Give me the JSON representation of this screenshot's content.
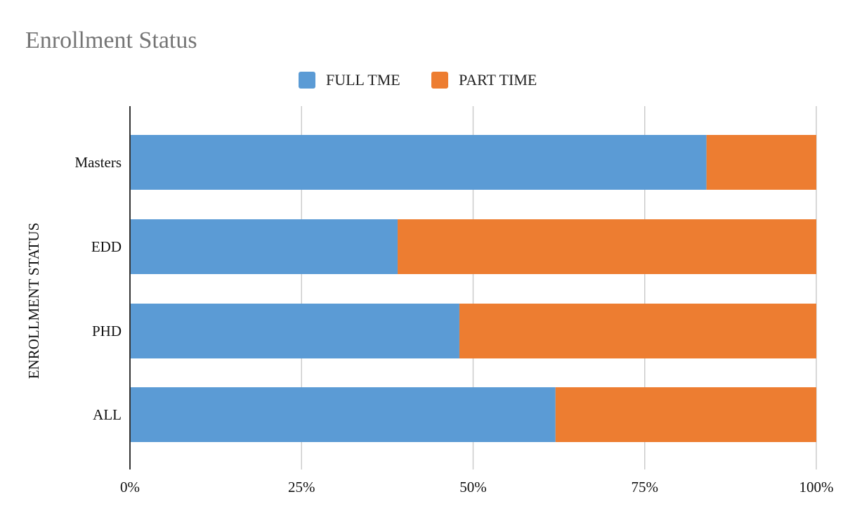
{
  "chart_data": {
    "type": "bar",
    "orientation": "horizontal",
    "stacked": true,
    "normalized": "percent",
    "title": "Enrollment Status",
    "ylabel": "ENROLLMENT STATUS",
    "xlabel": "",
    "categories": [
      "Masters",
      "EDD",
      "PHD",
      "ALL"
    ],
    "series": [
      {
        "name": "FULL TME",
        "color": "#5b9bd5",
        "values": [
          84,
          39,
          48,
          62
        ]
      },
      {
        "name": "PART TIME",
        "color": "#ed7d31",
        "values": [
          16,
          61,
          52,
          38
        ]
      }
    ],
    "xlim": [
      0,
      100
    ],
    "xticks": [
      0,
      25,
      50,
      75,
      100
    ],
    "xtick_labels": [
      "0%",
      "25%",
      "50%",
      "75%",
      "100%"
    ],
    "grid": "vertical",
    "legend_position": "top-center"
  }
}
